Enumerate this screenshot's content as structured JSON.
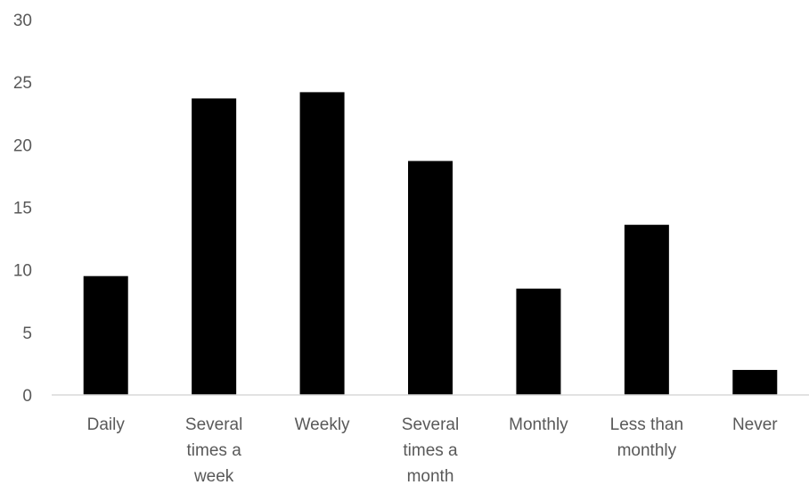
{
  "chart_data": {
    "type": "bar",
    "categories": [
      [
        "Daily"
      ],
      [
        "Several",
        "times a",
        "week"
      ],
      [
        "Weekly"
      ],
      [
        "Several",
        "times a",
        "month"
      ],
      [
        "Monthly"
      ],
      [
        "Less than",
        "monthly"
      ],
      [
        "Never"
      ]
    ],
    "values": [
      9.5,
      23.7,
      24.2,
      18.7,
      8.5,
      13.6,
      2.0
    ],
    "ylim": [
      0,
      30
    ],
    "yticks": [
      "0",
      "5",
      "10",
      "15",
      "20",
      "25",
      "30"
    ],
    "title": "",
    "xlabel": "",
    "ylabel": "",
    "grid": false,
    "bar_color": "#000000"
  }
}
